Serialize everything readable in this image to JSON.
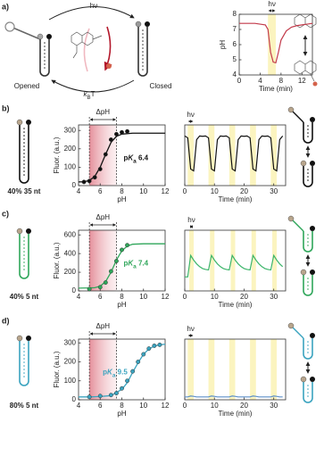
{
  "panel_labels": [
    "a)",
    "b)",
    "c)",
    "d)"
  ],
  "scheme": {
    "light": "hν",
    "opened": "Opened",
    "closed": "Closed",
    "thermal": [
      "k",
      "B",
      "T"
    ]
  },
  "constructs": [
    {
      "label": "40% 35 nt",
      "color": "#111111"
    },
    {
      "label": "40% 5 nt",
      "color": "#2fa65a"
    },
    {
      "label": "80% 5 nt",
      "color": "#3aa3bf"
    }
  ],
  "chart_data": [
    {
      "type": "line",
      "ylabel": "pH",
      "xlabel": "Time (min)",
      "annotation": "hν",
      "color": "#c23a4a",
      "xlim": [
        0,
        14
      ],
      "xticks": [
        0,
        4,
        8,
        12
      ],
      "ylim": [
        4,
        8
      ],
      "yticks": [
        4,
        5,
        6,
        7,
        8
      ],
      "shaded_x": [
        [
          5.5,
          7
        ]
      ],
      "x": [
        0,
        1,
        2,
        3,
        4,
        5,
        5.5,
        6,
        6.5,
        7,
        7.5,
        8,
        9,
        10,
        11,
        12,
        13,
        14
      ],
      "values": [
        7.4,
        7.4,
        7.4,
        7.4,
        7.35,
        7.3,
        7.0,
        5.5,
        4.85,
        4.8,
        5.5,
        6.3,
        6.9,
        7.15,
        7.25,
        7.3,
        7.35,
        7.4
      ]
    },
    {
      "type": "titration",
      "ylabel": "Fluor. (a.u.)",
      "xlabel": "pH",
      "shaded_label": "ΔpH",
      "annotation": [
        "p",
        "K",
        "a",
        " 6.4"
      ],
      "color": "#111111",
      "xlim": [
        4,
        12
      ],
      "xticks": [
        4,
        6,
        8,
        10,
        12
      ],
      "ylim": [
        0,
        330
      ],
      "yticks": [
        0,
        100,
        200,
        300
      ],
      "shaded_x": [
        [
          5,
          7.5
        ]
      ],
      "points": {
        "x": [
          4.5,
          5,
          5.5,
          6,
          6.5,
          7,
          7.5,
          8,
          8.5
        ],
        "values": [
          20,
          25,
          45,
          90,
          170,
          250,
          280,
          290,
          295
        ]
      },
      "fit": {
        "x": [
          4,
          4.5,
          5,
          5.5,
          6,
          6.5,
          7,
          7.5,
          8,
          9,
          10,
          11,
          12
        ],
        "values": [
          20,
          21,
          28,
          50,
          100,
          170,
          235,
          268,
          280,
          285,
          285,
          285,
          285
        ]
      }
    },
    {
      "type": "line",
      "xlabel": "Time (min)",
      "annotation": "hν",
      "color": "#111111",
      "xlim": [
        0,
        34
      ],
      "xticks": [
        0,
        10,
        20,
        30
      ],
      "ylim": [
        0,
        330
      ],
      "shaded_x": [
        [
          1,
          3
        ],
        [
          8,
          10
        ],
        [
          15,
          17
        ],
        [
          22,
          24
        ],
        [
          29,
          31
        ]
      ],
      "x": [
        0,
        1,
        2,
        3,
        4,
        5,
        6,
        7,
        8,
        9,
        10,
        11,
        12,
        13,
        14,
        15,
        16,
        17,
        18,
        19,
        20,
        21,
        22,
        23,
        24,
        25,
        26,
        27,
        28,
        29,
        30,
        31,
        32,
        33
      ],
      "values": [
        270,
        260,
        90,
        80,
        250,
        270,
        268,
        270,
        260,
        90,
        80,
        250,
        270,
        268,
        270,
        260,
        90,
        80,
        250,
        270,
        268,
        270,
        260,
        90,
        80,
        250,
        270,
        268,
        270,
        260,
        90,
        80,
        250,
        270
      ]
    },
    {
      "type": "titration",
      "ylabel": "Fluor. (a.u.)",
      "xlabel": "pH",
      "shaded_label": "ΔpH",
      "annotation": [
        "p",
        "K",
        "a",
        " 7.4"
      ],
      "color": "#2fa65a",
      "xlim": [
        4,
        12
      ],
      "xticks": [
        4,
        6,
        8,
        10,
        12
      ],
      "ylim": [
        0,
        650
      ],
      "yticks": [
        0,
        200,
        400,
        600
      ],
      "shaded_x": [
        [
          5,
          7.5
        ]
      ],
      "points": {
        "x": [
          5,
          6,
          6.5,
          7,
          7.5,
          8,
          8.5
        ],
        "values": [
          20,
          40,
          90,
          210,
          320,
          440,
          490
        ]
      },
      "fit": {
        "x": [
          4,
          5,
          5.5,
          6,
          6.5,
          7,
          7.5,
          8,
          8.5,
          9,
          10,
          11,
          12
        ],
        "values": [
          30,
          32,
          35,
          50,
          100,
          200,
          330,
          430,
          480,
          500,
          505,
          505,
          505
        ]
      }
    },
    {
      "type": "line",
      "xlabel": "Time (min)",
      "annotation": "hν",
      "color": "#3cb56a",
      "xlim": [
        0,
        34
      ],
      "xticks": [
        0,
        10,
        20,
        30
      ],
      "ylim": [
        0,
        650
      ],
      "shaded_x": [
        [
          1.5,
          3
        ],
        [
          8.5,
          10
        ],
        [
          15.5,
          17
        ],
        [
          22.5,
          24
        ],
        [
          29.5,
          31
        ]
      ],
      "x": [
        0,
        1,
        2,
        3,
        4,
        5,
        6,
        7,
        8,
        9,
        10,
        11,
        12,
        13,
        14,
        15,
        16,
        17,
        18,
        19,
        20,
        21,
        22,
        23,
        24,
        25,
        26,
        27,
        28,
        29,
        30,
        31,
        32,
        33
      ],
      "values": [
        150,
        150,
        380,
        330,
        290,
        260,
        240,
        230,
        225,
        380,
        330,
        290,
        260,
        240,
        230,
        225,
        380,
        330,
        290,
        260,
        240,
        230,
        225,
        380,
        330,
        290,
        260,
        240,
        230,
        225,
        380,
        330,
        290,
        260
      ]
    },
    {
      "type": "titration",
      "ylabel": "Fluor. (a.u.)",
      "xlabel": "pH",
      "shaded_label": "ΔpH",
      "annotation": [
        "p",
        "K",
        "a",
        " 9.5"
      ],
      "color": "#3aa3bf",
      "xlim": [
        4,
        12
      ],
      "xticks": [
        4,
        6,
        8,
        10,
        12
      ],
      "ylim": [
        0,
        320
      ],
      "yticks": [
        0,
        100,
        200,
        300
      ],
      "shaded_x": [
        [
          5,
          7.5
        ]
      ],
      "points": {
        "x": [
          5,
          6,
          7,
          7.5,
          8,
          8.5,
          9,
          9.5,
          10,
          10.5,
          11,
          11.5
        ],
        "values": [
          15,
          20,
          25,
          35,
          60,
          100,
          150,
          200,
          240,
          270,
          285,
          290
        ]
      },
      "fit": {
        "x": [
          4,
          5,
          6,
          7,
          8,
          8.5,
          9,
          9.5,
          10,
          10.5,
          11,
          11.5,
          12
        ],
        "values": [
          15,
          15,
          17,
          22,
          55,
          90,
          145,
          195,
          240,
          268,
          283,
          290,
          293
        ]
      }
    },
    {
      "type": "line",
      "xlabel": "Time (min)",
      "annotation": "hν",
      "color": "#5b8fc9",
      "xlim": [
        0,
        34
      ],
      "xticks": [
        0,
        10,
        20,
        30
      ],
      "ylim": [
        0,
        320
      ],
      "shaded_x": [
        [
          1,
          3
        ],
        [
          8,
          10
        ],
        [
          15,
          17
        ],
        [
          22,
          24
        ],
        [
          29,
          31
        ]
      ],
      "x": [
        0,
        1,
        2,
        3,
        4,
        5,
        6,
        7,
        8,
        9,
        10,
        11,
        12,
        13,
        14,
        15,
        16,
        17,
        18,
        19,
        20,
        21,
        22,
        23,
        24,
        25,
        26,
        27,
        28,
        29,
        30,
        31,
        32,
        33
      ],
      "values": [
        15,
        15,
        20,
        18,
        15,
        15,
        15,
        15,
        15,
        20,
        18,
        15,
        15,
        15,
        15,
        15,
        20,
        18,
        15,
        15,
        15,
        15,
        15,
        20,
        18,
        15,
        15,
        15,
        15,
        15,
        20,
        18,
        15,
        15
      ]
    }
  ]
}
